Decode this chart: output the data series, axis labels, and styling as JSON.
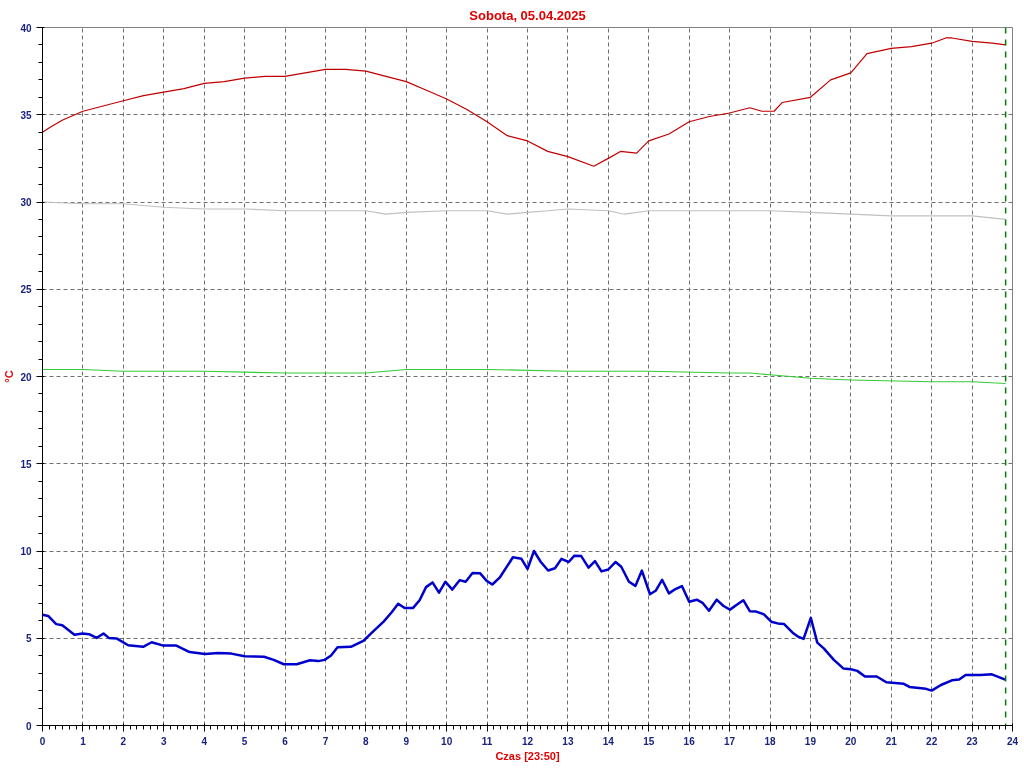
{
  "chart_data": {
    "type": "line",
    "title": "Sobota, 05.04.2025",
    "xlabel": "Czas [23:50]",
    "ylabel": "°C",
    "xlim": [
      0,
      24
    ],
    "ylim": [
      0,
      40
    ],
    "xticks": [
      0,
      1,
      2,
      3,
      4,
      5,
      6,
      7,
      8,
      9,
      10,
      11,
      12,
      13,
      14,
      15,
      16,
      17,
      18,
      19,
      20,
      21,
      22,
      23,
      24
    ],
    "yticks": [
      0,
      5,
      10,
      15,
      20,
      25,
      30,
      35,
      40
    ],
    "grid": true,
    "marker": "none",
    "line_style": "solid",
    "ref_lines": [
      {
        "axis": "x",
        "value": 23.83,
        "color": "#008000",
        "line_style": "dashed"
      }
    ],
    "series": [
      {
        "color": "#c00000",
        "x": [
          0,
          0.2,
          0.5,
          1,
          1.5,
          2,
          2.5,
          3,
          3.5,
          4,
          4.5,
          5,
          5.5,
          6,
          6.5,
          7,
          7.5,
          8,
          8.5,
          9,
          9.5,
          10,
          10.5,
          11,
          11.5,
          12,
          12.5,
          13,
          13.64,
          14,
          14.3,
          14.7,
          15,
          15.5,
          16,
          16.5,
          17,
          17.5,
          17.8,
          18.1,
          18.3,
          19,
          19.5,
          20,
          20.4,
          21,
          21.5,
          22,
          22.35,
          22.5,
          23,
          23.5,
          23.83
        ],
        "values": [
          34.0,
          34.3,
          34.7,
          35.2,
          35.5,
          35.8,
          36.1,
          36.3,
          36.5,
          36.8,
          36.9,
          37.1,
          37.2,
          37.2,
          37.4,
          37.6,
          37.6,
          37.5,
          37.2,
          36.9,
          36.4,
          35.9,
          35.3,
          34.6,
          33.8,
          33.5,
          32.9,
          32.6,
          32.05,
          32.5,
          32.9,
          32.8,
          33.5,
          33.9,
          34.6,
          34.9,
          35.1,
          35.4,
          35.2,
          35.2,
          35.7,
          36.0,
          37.0,
          37.4,
          38.5,
          38.8,
          38.9,
          39.1,
          39.4,
          39.4,
          39.2,
          39.1,
          39.0
        ]
      },
      {
        "color": "#c0c0c0",
        "x": [
          0,
          1,
          2,
          3,
          4,
          5,
          6,
          7,
          8,
          8.5,
          9,
          10,
          11,
          11.5,
          12,
          12.5,
          13,
          14,
          14.4,
          15,
          16,
          17,
          18,
          19,
          20,
          21,
          22,
          23,
          23.83
        ],
        "values": [
          30.0,
          29.9,
          29.9,
          29.7,
          29.6,
          29.6,
          29.5,
          29.5,
          29.5,
          29.3,
          29.4,
          29.5,
          29.5,
          29.3,
          29.4,
          29.5,
          29.6,
          29.5,
          29.3,
          29.5,
          29.5,
          29.5,
          29.5,
          29.4,
          29.3,
          29.2,
          29.2,
          29.2,
          29.0
        ]
      },
      {
        "color": "#33cc33",
        "x": [
          0,
          1,
          2,
          4,
          6,
          8,
          9,
          11,
          13,
          15,
          17,
          17.5,
          18,
          19,
          20,
          22,
          23,
          23.83
        ],
        "values": [
          20.4,
          20.4,
          20.3,
          20.3,
          20.2,
          20.2,
          20.4,
          20.4,
          20.3,
          20.3,
          20.2,
          20.2,
          20.1,
          19.9,
          19.8,
          19.7,
          19.7,
          19.6
        ]
      },
      {
        "color": "#0000cc",
        "x": [
          0,
          0.14,
          0.34,
          0.49,
          0.79,
          0.99,
          1.15,
          1.34,
          1.51,
          1.64,
          1.84,
          2.12,
          2.49,
          2.7,
          2.97,
          3.3,
          3.64,
          4.02,
          4.35,
          4.67,
          5.0,
          5.48,
          5.72,
          5.97,
          6.29,
          6.62,
          6.82,
          6.98,
          7.14,
          7.3,
          7.63,
          7.95,
          8.15,
          8.44,
          8.64,
          8.8,
          8.96,
          9.17,
          9.33,
          9.49,
          9.65,
          9.81,
          9.97,
          10.14,
          10.32,
          10.47,
          10.64,
          10.83,
          10.99,
          11.13,
          11.31,
          11.64,
          11.85,
          12.0,
          12.16,
          12.33,
          12.51,
          12.68,
          12.84,
          13.02,
          13.16,
          13.33,
          13.51,
          13.67,
          13.83,
          14.0,
          14.18,
          14.32,
          14.51,
          14.67,
          14.83,
          15.03,
          15.17,
          15.33,
          15.5,
          15.66,
          15.82,
          16.0,
          16.19,
          16.33,
          16.49,
          16.68,
          16.85,
          17.01,
          17.17,
          17.34,
          17.5,
          17.66,
          17.85,
          18.03,
          18.19,
          18.35,
          18.56,
          18.68,
          18.83,
          19.01,
          19.17,
          19.33,
          19.58,
          19.82,
          20.0,
          20.16,
          20.35,
          20.64,
          20.88,
          21.31,
          21.45,
          21.86,
          22.0,
          22.23,
          22.5,
          22.68,
          22.84,
          23.21,
          23.49,
          23.82
        ],
        "values": [
          6.35,
          6.28,
          5.81,
          5.74,
          5.2,
          5.27,
          5.23,
          5.02,
          5.27,
          5.02,
          4.98,
          4.6,
          4.51,
          4.77,
          4.59,
          4.59,
          4.21,
          4.1,
          4.15,
          4.12,
          3.97,
          3.94,
          3.76,
          3.51,
          3.51,
          3.74,
          3.69,
          3.76,
          4.01,
          4.48,
          4.51,
          4.87,
          5.32,
          5.95,
          6.49,
          6.98,
          6.73,
          6.74,
          7.18,
          7.93,
          8.2,
          7.61,
          8.24,
          7.79,
          8.33,
          8.24,
          8.74,
          8.72,
          8.29,
          8.08,
          8.47,
          9.64,
          9.55,
          8.97,
          10.0,
          9.37,
          8.88,
          9.01,
          9.55,
          9.37,
          9.73,
          9.71,
          9.05,
          9.42,
          8.83,
          8.94,
          9.37,
          9.1,
          8.24,
          8.0,
          8.88,
          7.52,
          7.72,
          8.35,
          7.57,
          7.82,
          7.99,
          7.09,
          7.21,
          7.03,
          6.58,
          7.21,
          6.85,
          6.64,
          6.91,
          7.18,
          6.55,
          6.53,
          6.37,
          5.95,
          5.85,
          5.81,
          5.32,
          5.11,
          4.96,
          6.17,
          4.75,
          4.42,
          3.76,
          3.26,
          3.22,
          3.13,
          2.81,
          2.81,
          2.48,
          2.39,
          2.21,
          2.1,
          2.0,
          2.32,
          2.59,
          2.63,
          2.9,
          2.9,
          2.93,
          2.63
        ]
      }
    ]
  }
}
